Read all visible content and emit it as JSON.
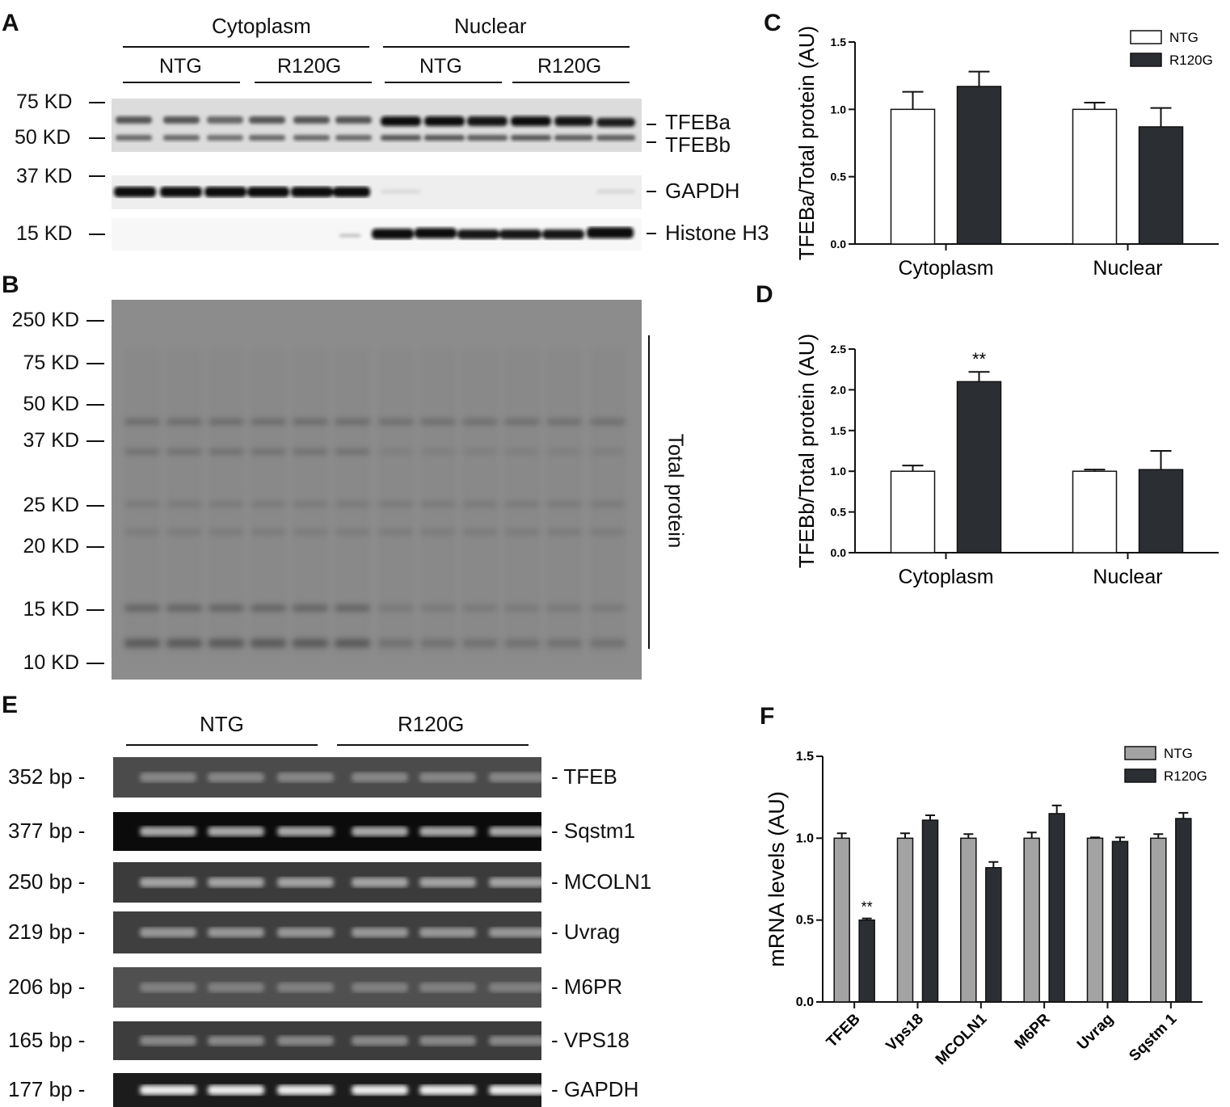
{
  "panels": {
    "A": "A",
    "B": "B",
    "C": "C",
    "D": "D",
    "E": "E",
    "F": "F"
  },
  "panelA": {
    "compartments": [
      "Cytoplasm",
      "Nuclear"
    ],
    "groups": [
      "NTG",
      "R120G",
      "NTG",
      "R120G"
    ],
    "markers": [
      "75 KD",
      "50 KD",
      "37 KD",
      "15 KD"
    ],
    "bands": [
      "TFEBa",
      "TFEBb",
      "GAPDH",
      "Histone H3"
    ]
  },
  "panelB": {
    "markers": [
      "250 KD",
      "75 KD",
      "50 KD",
      "37 KD",
      "25 KD",
      "20 KD",
      "15 KD",
      "10 KD"
    ],
    "label": "Total protein"
  },
  "panelE": {
    "groups": [
      "NTG",
      "R120G"
    ],
    "sizes": [
      "352 bp",
      "377 bp",
      "250 bp",
      "219 bp",
      "206 bp",
      "165 bp",
      "177 bp"
    ],
    "genes": [
      "TFEB",
      "Sqstm1",
      "MCOLN1",
      "Uvrag",
      "M6PR",
      "VPS18",
      "GAPDH"
    ]
  },
  "colors": {
    "ntg_white": "#ffffff",
    "r120g_dark": "#2b2f33",
    "ntg_gray": "#a3a3a3"
  },
  "chart_data": [
    {
      "type": "bar",
      "ylabel": "TFEBa/Total protein (AU)",
      "categories": [
        "Cytoplasm",
        "Nuclear"
      ],
      "series": [
        {
          "name": "NTG",
          "values": [
            1.0,
            1.0
          ],
          "errors": [
            0.13,
            0.05
          ]
        },
        {
          "name": "R120G",
          "values": [
            1.17,
            0.87
          ],
          "errors": [
            0.11,
            0.14
          ]
        }
      ],
      "ylim": [
        0,
        1.5
      ],
      "yticks": [
        "0.0",
        "0.5",
        "1.0",
        "1.5"
      ],
      "legend": "top-right",
      "annotations": []
    },
    {
      "type": "bar",
      "ylabel": "TFEBb/Total protein (AU)",
      "categories": [
        "Cytoplasm",
        "Nuclear"
      ],
      "series": [
        {
          "name": "NTG",
          "values": [
            1.0,
            1.0
          ],
          "errors": [
            0.07,
            0.02
          ]
        },
        {
          "name": "R120G",
          "values": [
            2.1,
            1.02
          ],
          "errors": [
            0.12,
            0.23
          ]
        }
      ],
      "ylim": [
        0,
        2.5
      ],
      "yticks": [
        "0.0",
        "0.5",
        "1.0",
        "1.5",
        "2.0",
        "2.5"
      ],
      "annotations": [
        {
          "category": "Cytoplasm",
          "series": "R120G",
          "text": "**"
        }
      ]
    },
    {
      "type": "bar",
      "ylabel": "mRNA levels (AU)",
      "categories": [
        "TFEB",
        "Vps18",
        "MCOLN1",
        "M6PR",
        "Uvrag",
        "Sqstm 1"
      ],
      "series": [
        {
          "name": "NTG",
          "values": [
            1.0,
            1.0,
            1.0,
            1.0,
            1.0,
            1.0
          ],
          "errors": [
            0.03,
            0.03,
            0.025,
            0.035,
            0.005,
            0.025
          ]
        },
        {
          "name": "R120G",
          "values": [
            0.5,
            1.11,
            0.82,
            1.15,
            0.98,
            1.12
          ],
          "errors": [
            0.01,
            0.03,
            0.035,
            0.05,
            0.025,
            0.035
          ]
        }
      ],
      "ylim": [
        0,
        1.5
      ],
      "yticks": [
        "0.0",
        "0.5",
        "1.0",
        "1.5"
      ],
      "legend": "top-right",
      "annotations": [
        {
          "category": "TFEB",
          "series": "R120G",
          "text": "**"
        }
      ]
    }
  ]
}
